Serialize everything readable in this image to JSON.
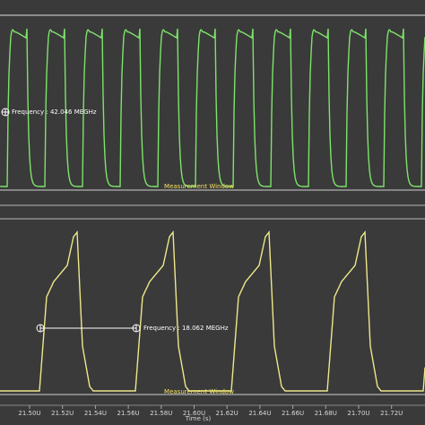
{
  "top_panel": {
    "measurement": "Frequency : 42.046 MEGHz",
    "window_label": "Measurement Window"
  },
  "bottom_panel": {
    "measurement": "Frequency : 18.062 MEGHz",
    "window_label": "Measurement Window"
  },
  "x_axis": {
    "ticks": [
      "21.50U",
      "21.52U",
      "21.54U",
      "21.56U",
      "21.58U",
      "21.60U",
      "21.62U",
      "21.64U",
      "21.66U",
      "21.68U",
      "21.70U",
      "21.72U"
    ],
    "label": "Time (s)"
  }
}
